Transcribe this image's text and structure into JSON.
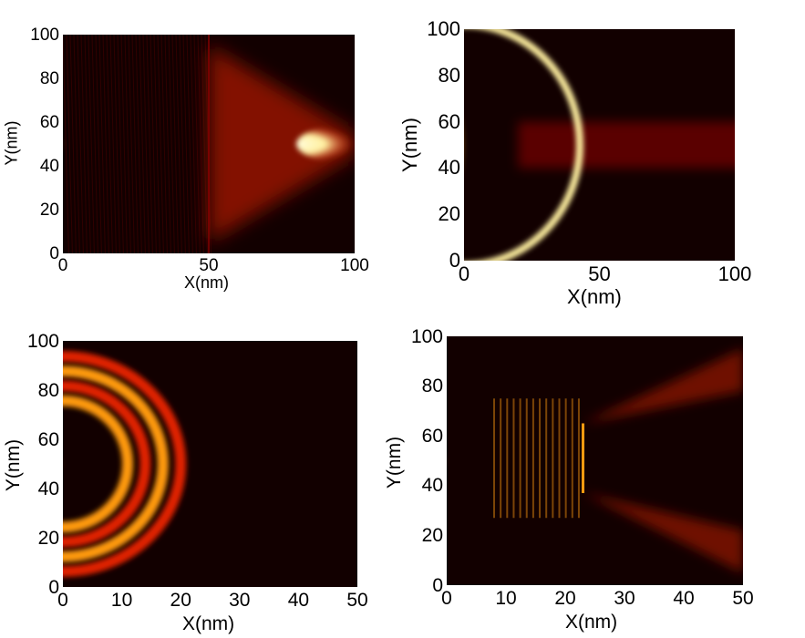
{
  "chart_data": [
    {
      "type": "heatmap",
      "xlabel": "X(nm)",
      "ylabel": "Y(nm)",
      "xlim": [
        0,
        100
      ],
      "ylim": [
        0,
        100
      ],
      "xticks": [
        "0",
        "50",
        "100"
      ],
      "yticks": [
        "0",
        "20",
        "40",
        "60",
        "80",
        "100"
      ],
      "colormap": [
        "#120000",
        "#8a0000",
        "#e02000",
        "#ff9a10",
        "#fff0a0",
        "#fffde0"
      ],
      "description_values": {
        "source_center": [
          0,
          50
        ],
        "focus_center": [
          100,
          50
        ],
        "interface_x": 50
      }
    },
    {
      "type": "heatmap",
      "xlabel": "X(nm)",
      "ylabel": "Y(nm)",
      "xlim": [
        0,
        100
      ],
      "ylim": [
        0,
        100
      ],
      "xticks": [
        "0",
        "50",
        "100"
      ],
      "yticks": [
        "0",
        "20",
        "40",
        "60",
        "80",
        "100"
      ],
      "colormap": [
        "#120000",
        "#8a0000",
        "#e02000",
        "#ff9a10",
        "#fff0a0",
        "#fffde0"
      ],
      "description_values": {
        "source_center": [
          0,
          50
        ],
        "wavefront_x": 45,
        "channel_y": [
          40,
          60
        ]
      }
    },
    {
      "type": "heatmap",
      "xlabel": "X(nm)",
      "ylabel": "Y(nm)",
      "xlim": [
        0,
        50
      ],
      "ylim": [
        0,
        100
      ],
      "xticks": [
        "0",
        "10",
        "20",
        "30",
        "40",
        "50"
      ],
      "yticks": [
        "0",
        "20",
        "40",
        "60",
        "80",
        "100"
      ],
      "colormap": [
        "#120000",
        "#8a0000",
        "#e02000",
        "#ff9a10",
        "#fff0a0",
        "#fffde0"
      ],
      "description_values": {
        "source_center": [
          0,
          50
        ],
        "wavefront_x": 20
      }
    },
    {
      "type": "heatmap",
      "xlabel": "X(nm)",
      "ylabel": "Y(nm)",
      "xlim": [
        0,
        50
      ],
      "ylim": [
        0,
        100
      ],
      "xticks": [
        "0",
        "10",
        "20",
        "30",
        "40",
        "50"
      ],
      "yticks": [
        "0",
        "20",
        "40",
        "60",
        "80",
        "100"
      ],
      "colormap": [
        "#120000",
        "#8a0000",
        "#e02000",
        "#ff9a10",
        "#fff0a0",
        "#fffde0"
      ],
      "description_values": {
        "source_center": [
          0,
          50
        ],
        "barrier_x": 23,
        "barrier_y": [
          37,
          65
        ]
      }
    }
  ]
}
